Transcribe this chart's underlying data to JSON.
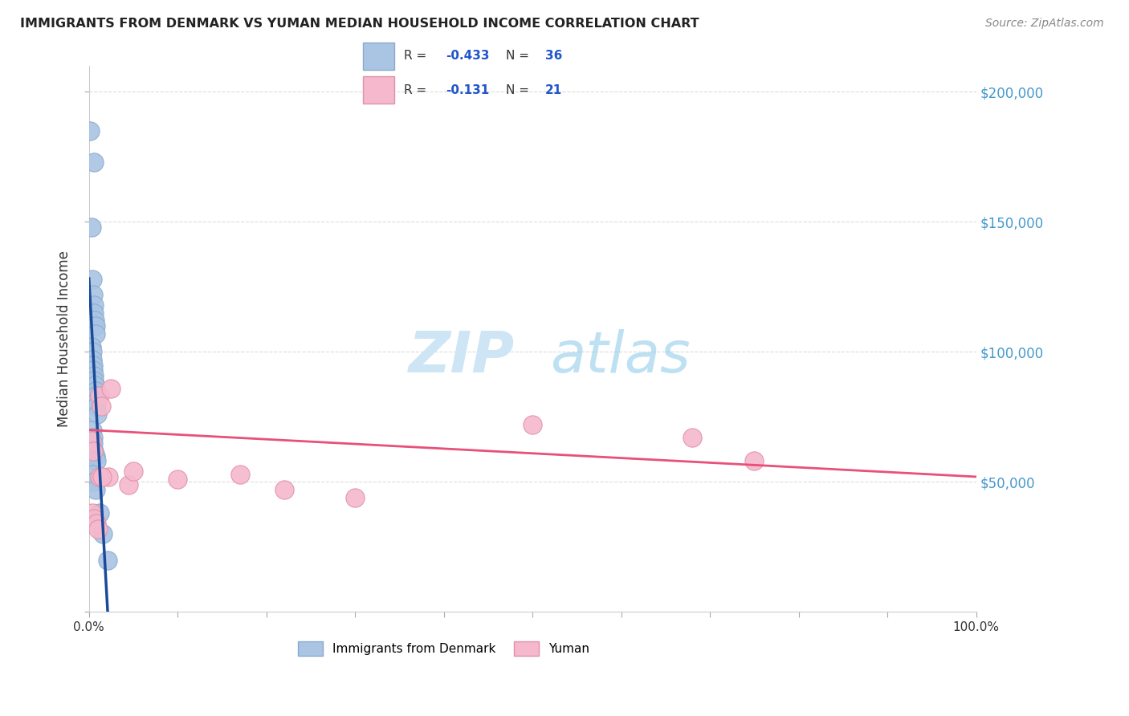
{
  "title": "IMMIGRANTS FROM DENMARK VS YUMAN MEDIAN HOUSEHOLD INCOME CORRELATION CHART",
  "source": "Source: ZipAtlas.com",
  "ylabel": "Median Household Income",
  "blue_color": "#aac4e4",
  "pink_color": "#f5b8cc",
  "blue_edge_color": "#88aacc",
  "pink_edge_color": "#e090a8",
  "blue_line_color": "#1a4a9a",
  "pink_line_color": "#e8507a",
  "right_label_color": "#4499cc",
  "watermark_color": "#cde5f5",
  "blue_dots_x": [
    0.15,
    0.55,
    0.3,
    0.35,
    0.5,
    0.55,
    0.6,
    0.65,
    0.7,
    0.75,
    0.3,
    0.35,
    0.4,
    0.45,
    0.5,
    0.55,
    0.6,
    0.65,
    0.7,
    0.75,
    0.8,
    0.85,
    0.95,
    0.35,
    0.45,
    0.5,
    0.6,
    0.7,
    0.8,
    0.4,
    0.55,
    0.7,
    1.2,
    1.6,
    2.1
  ],
  "blue_dots_y": [
    185000,
    173000,
    148000,
    128000,
    122000,
    118000,
    115000,
    112000,
    110000,
    107000,
    102000,
    100000,
    97000,
    95000,
    93000,
    91000,
    89000,
    87000,
    85000,
    83000,
    81000,
    79000,
    76000,
    70000,
    67000,
    65000,
    62000,
    60000,
    58000,
    53000,
    50000,
    47000,
    38000,
    30000,
    20000
  ],
  "pink_dots_x": [
    0.3,
    0.5,
    1.2,
    1.4,
    2.5,
    2.2,
    4.5,
    5.0,
    10.0,
    17.0,
    22.0,
    30.0,
    50.0,
    68.0,
    75.0,
    0.35,
    0.6,
    0.8,
    1.0,
    1.2,
    1.5
  ],
  "pink_dots_y": [
    66000,
    62000,
    83000,
    79000,
    86000,
    52000,
    49000,
    54000,
    51000,
    53000,
    47000,
    44000,
    72000,
    67000,
    58000,
    38000,
    36000,
    34000,
    32000,
    52000,
    52000
  ],
  "xlim": [
    0,
    100
  ],
  "ylim": [
    0,
    210000
  ],
  "yticks": [
    0,
    50000,
    100000,
    150000,
    200000
  ],
  "xtick_positions": [
    0,
    10,
    20,
    30,
    40,
    50,
    60,
    70,
    80,
    90,
    100
  ],
  "blue_line_x0": 0.0,
  "blue_line_x1": 2.5,
  "blue_line_dash_x1": 7.5,
  "pink_line_x0": 0.0,
  "pink_line_x1": 100.0
}
